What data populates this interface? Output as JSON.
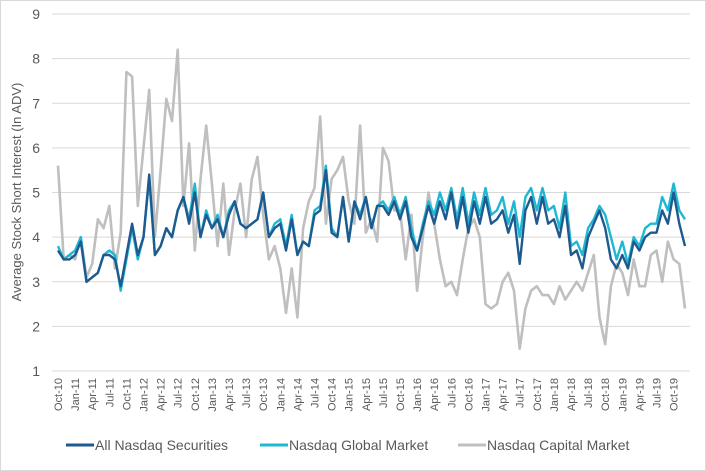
{
  "chart_data": {
    "type": "line",
    "title": "",
    "xlabel": "",
    "ylabel": "Average Stock Short Interest (In ADV)",
    "ylim": [
      1,
      9
    ],
    "yticks": [
      1,
      2,
      3,
      4,
      5,
      6,
      7,
      8,
      9
    ],
    "grid": true,
    "legend": "bottom",
    "x_start": "Oct-10",
    "x_frequency": "monthly",
    "x_tick_labels": [
      "Oct-10",
      "Jan-11",
      "Apr-11",
      "Jul-11",
      "Oct-11",
      "Jan-12",
      "Apr-12",
      "Jul-12",
      "Oct-12",
      "Jan-13",
      "Apr-13",
      "Jul-13",
      "Oct-13",
      "Jan-14",
      "Apr-14",
      "Jul-14",
      "Oct-14",
      "Jan-15",
      "Apr-15",
      "Jul-15",
      "Oct-15",
      "Jan-16",
      "Apr-16",
      "Jul-16",
      "Oct-16",
      "Jan-17",
      "Apr-17",
      "Jul-17",
      "Oct-17",
      "Jan-18",
      "Apr-18",
      "Jul-18",
      "Oct-18",
      "Jan-19",
      "Apr-19",
      "Jul-19",
      "Oct-19"
    ],
    "series": [
      {
        "name": "All Nasdaq Securities",
        "color": "#1f5a8f",
        "values": [
          3.7,
          3.5,
          3.5,
          3.6,
          3.9,
          3.0,
          3.1,
          3.2,
          3.6,
          3.6,
          3.5,
          2.9,
          3.6,
          4.3,
          3.6,
          4.0,
          5.4,
          3.6,
          3.8,
          4.2,
          4.0,
          4.6,
          4.9,
          4.3,
          5.0,
          4.0,
          4.5,
          4.2,
          4.4,
          4.0,
          4.5,
          4.8,
          4.3,
          4.2,
          4.3,
          4.4,
          5.0,
          4.0,
          4.2,
          4.3,
          3.7,
          4.4,
          3.6,
          3.9,
          3.8,
          4.5,
          4.6,
          5.5,
          4.1,
          4.0,
          4.9,
          3.9,
          4.8,
          4.4,
          4.9,
          4.2,
          4.7,
          4.7,
          4.5,
          4.8,
          4.4,
          4.8,
          4.0,
          3.7,
          4.2,
          4.7,
          4.3,
          4.8,
          4.4,
          5.0,
          4.2,
          4.9,
          4.1,
          4.8,
          4.3,
          4.9,
          4.3,
          4.4,
          4.6,
          4.1,
          4.5,
          3.4,
          4.6,
          4.9,
          4.3,
          4.9,
          4.3,
          4.4,
          4.0,
          4.7,
          3.6,
          3.7,
          3.3,
          4.0,
          4.3,
          4.6,
          4.2,
          3.5,
          3.3,
          3.6,
          3.3,
          3.9,
          3.7,
          4.0,
          4.1,
          4.1,
          4.6,
          4.3,
          5.0,
          4.3,
          3.8
        ]
      },
      {
        "name": "Nasdaq Global Market",
        "color": "#1fb8d3",
        "values": [
          3.8,
          3.5,
          3.6,
          3.7,
          4.0,
          3.0,
          3.1,
          3.2,
          3.6,
          3.7,
          3.6,
          2.8,
          3.5,
          4.2,
          3.5,
          4.0,
          5.3,
          3.6,
          3.8,
          4.2,
          4.0,
          4.6,
          4.9,
          4.4,
          5.2,
          4.0,
          4.6,
          4.2,
          4.5,
          4.0,
          4.6,
          4.8,
          4.3,
          4.2,
          4.3,
          4.4,
          5.0,
          4.0,
          4.3,
          4.4,
          3.8,
          4.5,
          3.6,
          3.9,
          3.8,
          4.6,
          4.7,
          5.6,
          4.2,
          4.0,
          4.9,
          3.9,
          4.8,
          4.5,
          4.9,
          4.2,
          4.7,
          4.8,
          4.6,
          4.9,
          4.5,
          4.9,
          4.2,
          3.7,
          4.3,
          4.8,
          4.5,
          5.0,
          4.6,
          5.1,
          4.4,
          5.1,
          4.3,
          5.0,
          4.5,
          5.1,
          4.5,
          4.6,
          4.9,
          4.3,
          4.8,
          4.0,
          4.9,
          5.1,
          4.6,
          5.1,
          4.6,
          4.7,
          4.2,
          5.0,
          3.8,
          3.9,
          3.6,
          4.2,
          4.4,
          4.7,
          4.5,
          4.0,
          3.5,
          3.9,
          3.4,
          4.0,
          3.8,
          4.2,
          4.3,
          4.3,
          4.9,
          4.6,
          5.2,
          4.6,
          4.4
        ]
      },
      {
        "name": "Nasdaq Capital Market",
        "color": "#bfbfbf",
        "values": [
          5.6,
          3.5,
          3.6,
          3.5,
          4.0,
          3.1,
          3.4,
          4.4,
          4.2,
          4.7,
          3.3,
          4.1,
          7.7,
          7.6,
          4.7,
          6.0,
          7.3,
          4.0,
          5.5,
          7.1,
          6.6,
          8.2,
          4.7,
          6.1,
          3.7,
          5.3,
          6.5,
          5.2,
          3.8,
          5.2,
          3.6,
          4.6,
          5.2,
          4.0,
          5.3,
          5.8,
          4.5,
          3.5,
          3.8,
          3.3,
          2.3,
          3.3,
          2.2,
          4.2,
          4.8,
          5.1,
          6.7,
          4.3,
          5.3,
          5.5,
          5.8,
          4.8,
          4.3,
          6.5,
          4.1,
          4.4,
          3.9,
          6.0,
          5.7,
          4.6,
          4.6,
          3.5,
          4.5,
          2.8,
          4.0,
          5.0,
          4.3,
          3.5,
          2.9,
          3.0,
          2.7,
          3.5,
          4.2,
          4.4,
          4.0,
          2.5,
          2.4,
          2.5,
          3.0,
          3.2,
          2.8,
          1.5,
          2.4,
          2.8,
          2.9,
          2.7,
          2.7,
          2.5,
          2.9,
          2.6,
          2.8,
          3.0,
          2.8,
          3.2,
          3.6,
          2.2,
          1.6,
          2.9,
          3.4,
          3.2,
          2.7,
          3.5,
          2.9,
          2.9,
          3.6,
          3.7,
          3.0,
          3.9,
          3.5,
          3.4,
          2.4
        ]
      }
    ]
  }
}
